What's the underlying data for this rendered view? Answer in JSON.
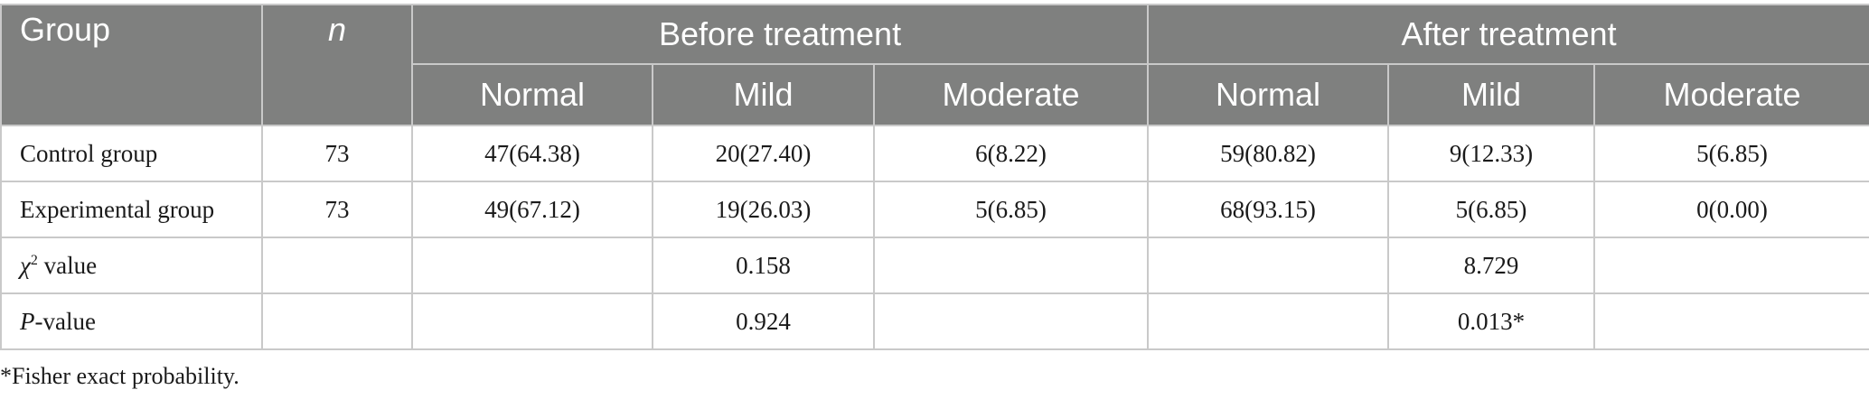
{
  "header": {
    "group": "Group",
    "n": "n",
    "before": "Before treatment",
    "after": "After treatment",
    "sub": [
      "Normal",
      "Mild",
      "Moderate",
      "Normal",
      "Mild",
      "Moderate"
    ]
  },
  "rows": [
    {
      "label": "Control group",
      "n": "73",
      "cells": [
        "47(64.38)",
        "20(27.40)",
        "6(8.22)",
        "59(80.82)",
        "9(12.33)",
        "5(6.85)"
      ]
    },
    {
      "label": "Experimental group",
      "n": "73",
      "cells": [
        "49(67.12)",
        "19(26.03)",
        "5(6.85)",
        "68(93.15)",
        "5(6.85)",
        "0(0.00)"
      ]
    }
  ],
  "stats": {
    "chi": {
      "symbol": "χ",
      "sup": "2",
      "label": " value",
      "before": "0.158",
      "after": "8.729"
    },
    "p": {
      "symbol": "P",
      "label": "-value",
      "before": "0.924",
      "after": "0.013*"
    }
  },
  "footnote": "*Fisher exact probability."
}
